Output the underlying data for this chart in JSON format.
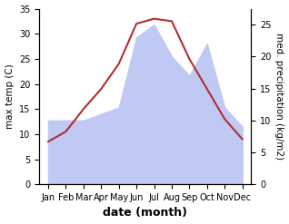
{
  "months": [
    "Jan",
    "Feb",
    "Mar",
    "Apr",
    "May",
    "Jun",
    "Jul",
    "Aug",
    "Sep",
    "Oct",
    "Nov",
    "Dec"
  ],
  "temp": [
    8.5,
    10.5,
    15.0,
    19.0,
    24.0,
    32.0,
    33.0,
    32.5,
    25.0,
    19.0,
    13.0,
    9.0
  ],
  "precip": [
    10.0,
    10.0,
    10.0,
    11.0,
    12.0,
    23.0,
    25.0,
    20.0,
    17.0,
    22.0,
    12.0,
    9.0
  ],
  "temp_color": "#b03030",
  "precip_fill_color": "#c0c8f4",
  "temp_ylim": [
    0,
    35
  ],
  "precip_ylim": [
    0,
    27.5
  ],
  "temp_yticks": [
    0,
    5,
    10,
    15,
    20,
    25,
    30,
    35
  ],
  "precip_yticks": [
    0,
    5,
    10,
    15,
    20,
    25
  ],
  "xlabel": "date (month)",
  "ylabel_left": "max temp (C)",
  "ylabel_right": "med. precipitation (kg/m2)",
  "bg_color": "#ffffff",
  "label_fontsize": 9,
  "tick_fontsize": 7,
  "ylabel_fontsize": 7.5
}
